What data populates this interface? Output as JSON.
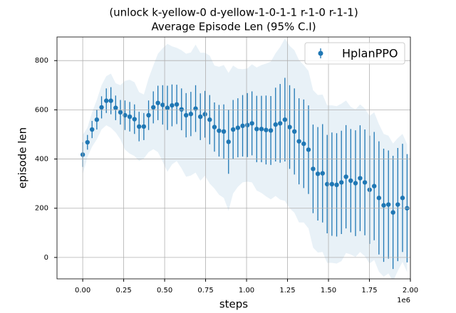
{
  "chart_data": {
    "type": "errorbar",
    "title": "(unlock k-yellow-0 d-yellow-1-0-1-1 r-1-0 r-1-1)",
    "subtitle": "Average Episode Len (95% C.I)",
    "x_label": "steps",
    "y_label": "episode len",
    "x_offset_text": "1e6",
    "x": [
      0,
      0.029,
      0.057,
      0.086,
      0.115,
      0.144,
      0.172,
      0.201,
      0.23,
      0.258,
      0.287,
      0.316,
      0.344,
      0.373,
      0.402,
      0.431,
      0.459,
      0.488,
      0.517,
      0.545,
      0.574,
      0.603,
      0.631,
      0.66,
      0.689,
      0.718,
      0.746,
      0.775,
      0.804,
      0.832,
      0.861,
      0.89,
      0.918,
      0.947,
      0.976,
      1.005,
      1.033,
      1.062,
      1.091,
      1.119,
      1.148,
      1.177,
      1.205,
      1.234,
      1.263,
      1.292,
      1.32,
      1.349,
      1.378,
      1.406,
      1.435,
      1.464,
      1.492,
      1.521,
      1.55,
      1.579,
      1.607,
      1.636,
      1.665,
      1.693,
      1.722,
      1.751,
      1.779,
      1.808,
      1.837,
      1.866,
      1.894,
      1.923,
      1.952,
      1.98
    ],
    "series": [
      {
        "name": "HplanPPO",
        "color": "#1f77b4",
        "values": [
          418,
          468,
          520,
          560,
          610,
          637,
          637,
          608,
          590,
          578,
          572,
          562,
          532,
          532,
          578,
          610,
          628,
          620,
          608,
          618,
          622,
          602,
          578,
          583,
          605,
          572,
          582,
          560,
          530,
          515,
          512,
          470,
          520,
          527,
          535,
          538,
          545,
          522,
          522,
          518,
          516,
          540,
          545,
          560,
          530,
          512,
          472,
          462,
          438,
          360,
          340,
          342,
          298,
          298,
          295,
          305,
          328,
          312,
          302,
          322,
          305,
          275,
          290,
          242,
          212,
          215,
          183,
          215,
          242,
          200
        ],
        "errors": [
          50,
          30,
          35,
          40,
          45,
          50,
          55,
          50,
          50,
          60,
          60,
          60,
          60,
          55,
          60,
          65,
          70,
          80,
          90,
          85,
          80,
          85,
          90,
          90,
          95,
          95,
          95,
          100,
          100,
          105,
          110,
          130,
          120,
          120,
          125,
          130,
          130,
          135,
          135,
          140,
          140,
          150,
          160,
          170,
          170,
          175,
          175,
          180,
          180,
          180,
          190,
          200,
          200,
          210,
          210,
          210,
          210,
          210,
          215,
          215,
          215,
          220,
          220,
          230,
          230,
          220,
          230,
          230,
          220,
          220
        ],
        "spread": [
          80,
          60,
          70,
          80,
          90,
          100,
          110,
          100,
          110,
          140,
          150,
          150,
          140,
          130,
          150,
          170,
          200,
          230,
          260,
          240,
          230,
          240,
          250,
          250,
          260,
          260,
          250,
          260,
          250,
          260,
          270,
          280,
          260,
          240,
          230,
          230,
          240,
          250,
          260,
          270,
          280,
          290,
          310,
          330,
          330,
          330,
          330,
          320,
          320,
          320,
          320,
          320,
          320,
          320,
          320,
          320,
          310,
          300,
          300,
          300,
          300,
          300,
          300,
          300,
          290,
          280,
          280,
          270,
          260,
          260
        ]
      }
    ],
    "xlim": [
      -0.157,
      2.0
    ],
    "ylim": [
      -87,
      896
    ],
    "xticks": [
      {
        "value": 0,
        "label": "0.00"
      },
      {
        "value": 0.25,
        "label": "0.25"
      },
      {
        "value": 0.5,
        "label": "0.50"
      },
      {
        "value": 0.75,
        "label": "0.75"
      },
      {
        "value": 1,
        "label": "1.00"
      },
      {
        "value": 1.25,
        "label": "1.25"
      },
      {
        "value": 1.5,
        "label": "1.50"
      },
      {
        "value": 1.75,
        "label": "1.75"
      },
      {
        "value": 2,
        "label": "2.00"
      }
    ],
    "yticks": [
      0,
      200,
      400,
      600,
      800
    ],
    "grid": true,
    "legend": "upper right"
  }
}
